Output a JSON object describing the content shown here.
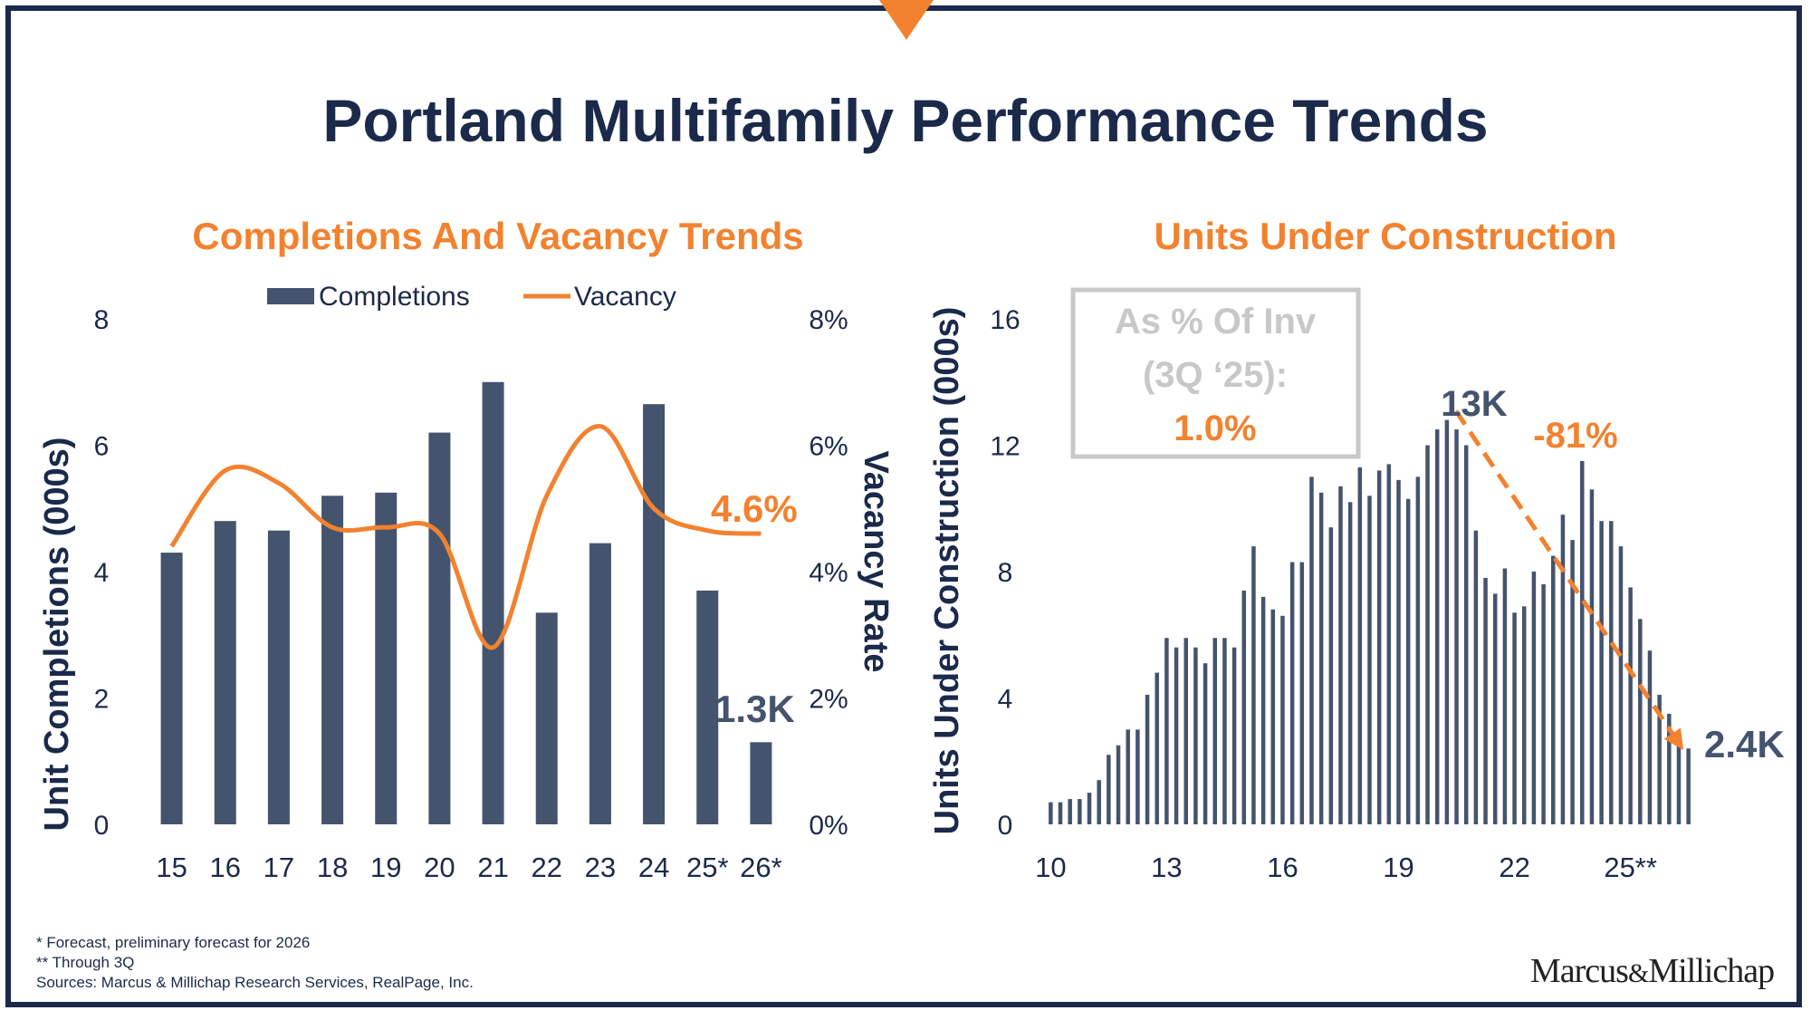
{
  "title": "Portland Multifamily Performance Trends",
  "colors": {
    "navy": "#1b2a4a",
    "bar": "#44536e",
    "orange": "#f2822f",
    "grey": "#c8c8c8"
  },
  "left_chart": {
    "title": "Completions And Vacancy Trends",
    "annotation_vacancy": "4.6%",
    "annotation_completions": "1.3K"
  },
  "right_chart": {
    "title": "Units Under Construction",
    "inset": {
      "line1": "As % Of Inv",
      "line2": "(3Q ‘25):",
      "value": "1.0%"
    },
    "annotation_peak": "13K",
    "annotation_change": "-81%",
    "annotation_latest": "2.4K"
  },
  "chart_data": [
    {
      "type": "bar",
      "title": "Completions And Vacancy Trends",
      "categories": [
        "15",
        "16",
        "17",
        "18",
        "19",
        "20",
        "21",
        "22",
        "23",
        "24",
        "25*",
        "26*"
      ],
      "series": [
        {
          "name": "Completions",
          "type": "bar",
          "axis": "left",
          "values": [
            4.3,
            4.8,
            4.65,
            5.2,
            5.25,
            6.2,
            7.0,
            3.35,
            4.45,
            6.65,
            3.7,
            1.3
          ]
        },
        {
          "name": "Vacancy",
          "type": "line",
          "axis": "right",
          "values": [
            4.4,
            5.6,
            5.4,
            4.7,
            4.7,
            4.6,
            2.8,
            5.2,
            6.3,
            5.0,
            4.65,
            4.6
          ]
        }
      ],
      "ylabel": "Unit Completions (000s)",
      "ylabel_right": "Vacancy Rate",
      "ylim": [
        0,
        8
      ],
      "yticks": [
        "0",
        "2",
        "4",
        "6",
        "8"
      ],
      "ylim_right": [
        0,
        8
      ],
      "yticks_right": [
        "0%",
        "2%",
        "4%",
        "6%",
        "8%"
      ],
      "legend": "top"
    },
    {
      "type": "bar",
      "title": "Units Under Construction",
      "xticks": [
        "10",
        "13",
        "16",
        "19",
        "22",
        "25**"
      ],
      "ylabel": "Units Under Construction (000s)",
      "ylim": [
        0,
        16
      ],
      "yticks": [
        "0",
        "4",
        "8",
        "12",
        "16"
      ],
      "series": [
        {
          "name": "Units Under Construction",
          "values": [
            0.7,
            0.7,
            0.8,
            0.8,
            1.0,
            1.4,
            2.2,
            2.5,
            3.0,
            3.0,
            4.1,
            4.8,
            5.9,
            5.6,
            5.9,
            5.6,
            5.1,
            5.9,
            5.9,
            5.6,
            7.4,
            8.8,
            7.2,
            6.8,
            6.6,
            8.3,
            8.3,
            11.0,
            10.5,
            9.4,
            10.7,
            10.2,
            11.3,
            10.4,
            11.2,
            11.4,
            10.9,
            10.3,
            11.0,
            12.0,
            12.5,
            12.8,
            12.5,
            12.0,
            9.3,
            7.8,
            7.3,
            8.1,
            6.7,
            6.9,
            8.0,
            7.6,
            8.5,
            9.8,
            9.0,
            11.5,
            10.6,
            9.6,
            9.6,
            8.8,
            7.5,
            6.5,
            5.5,
            4.1,
            3.5,
            2.9,
            2.4
          ]
        }
      ]
    }
  ],
  "footnotes": [
    "* Forecast, preliminary forecast for 2026",
    "** Through 3Q",
    "Sources: Marcus & Millichap Research Services, RealPage, Inc."
  ],
  "logo": {
    "left": "Marcus",
    "amp": "&",
    "right": "Millichap"
  }
}
